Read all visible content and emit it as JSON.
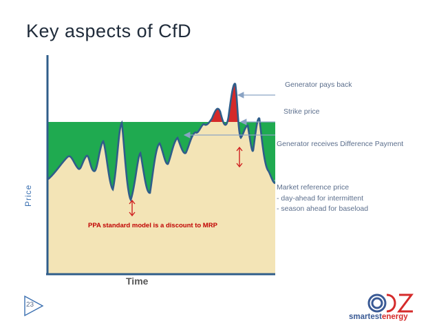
{
  "slide": {
    "title": "Key aspects of CfD",
    "page_number": "23"
  },
  "diagram": {
    "y_axis_label": "Price",
    "x_axis_label": "Time",
    "annotations": {
      "generator_pays_back": "Generator pays back",
      "strike_price": "Strike price",
      "difference_payment": "Generator receives Difference Payment",
      "market_reference": "Market reference price",
      "day_ahead": "- day-ahead for intermittent",
      "season_ahead": "- season ahead for baseload",
      "ppa_note": "PPA standard model is a discount to MRP"
    },
    "colors": {
      "green_area": "#1faa50",
      "red_area": "#d42a2a",
      "beige_area": "#f3e4b6",
      "curve": "#2f5d8a",
      "arrows": "#8aa3c4",
      "red_arrow": "#d02020"
    }
  },
  "logo": {
    "brand_main": "smartest",
    "brand_accent": "energy"
  }
}
